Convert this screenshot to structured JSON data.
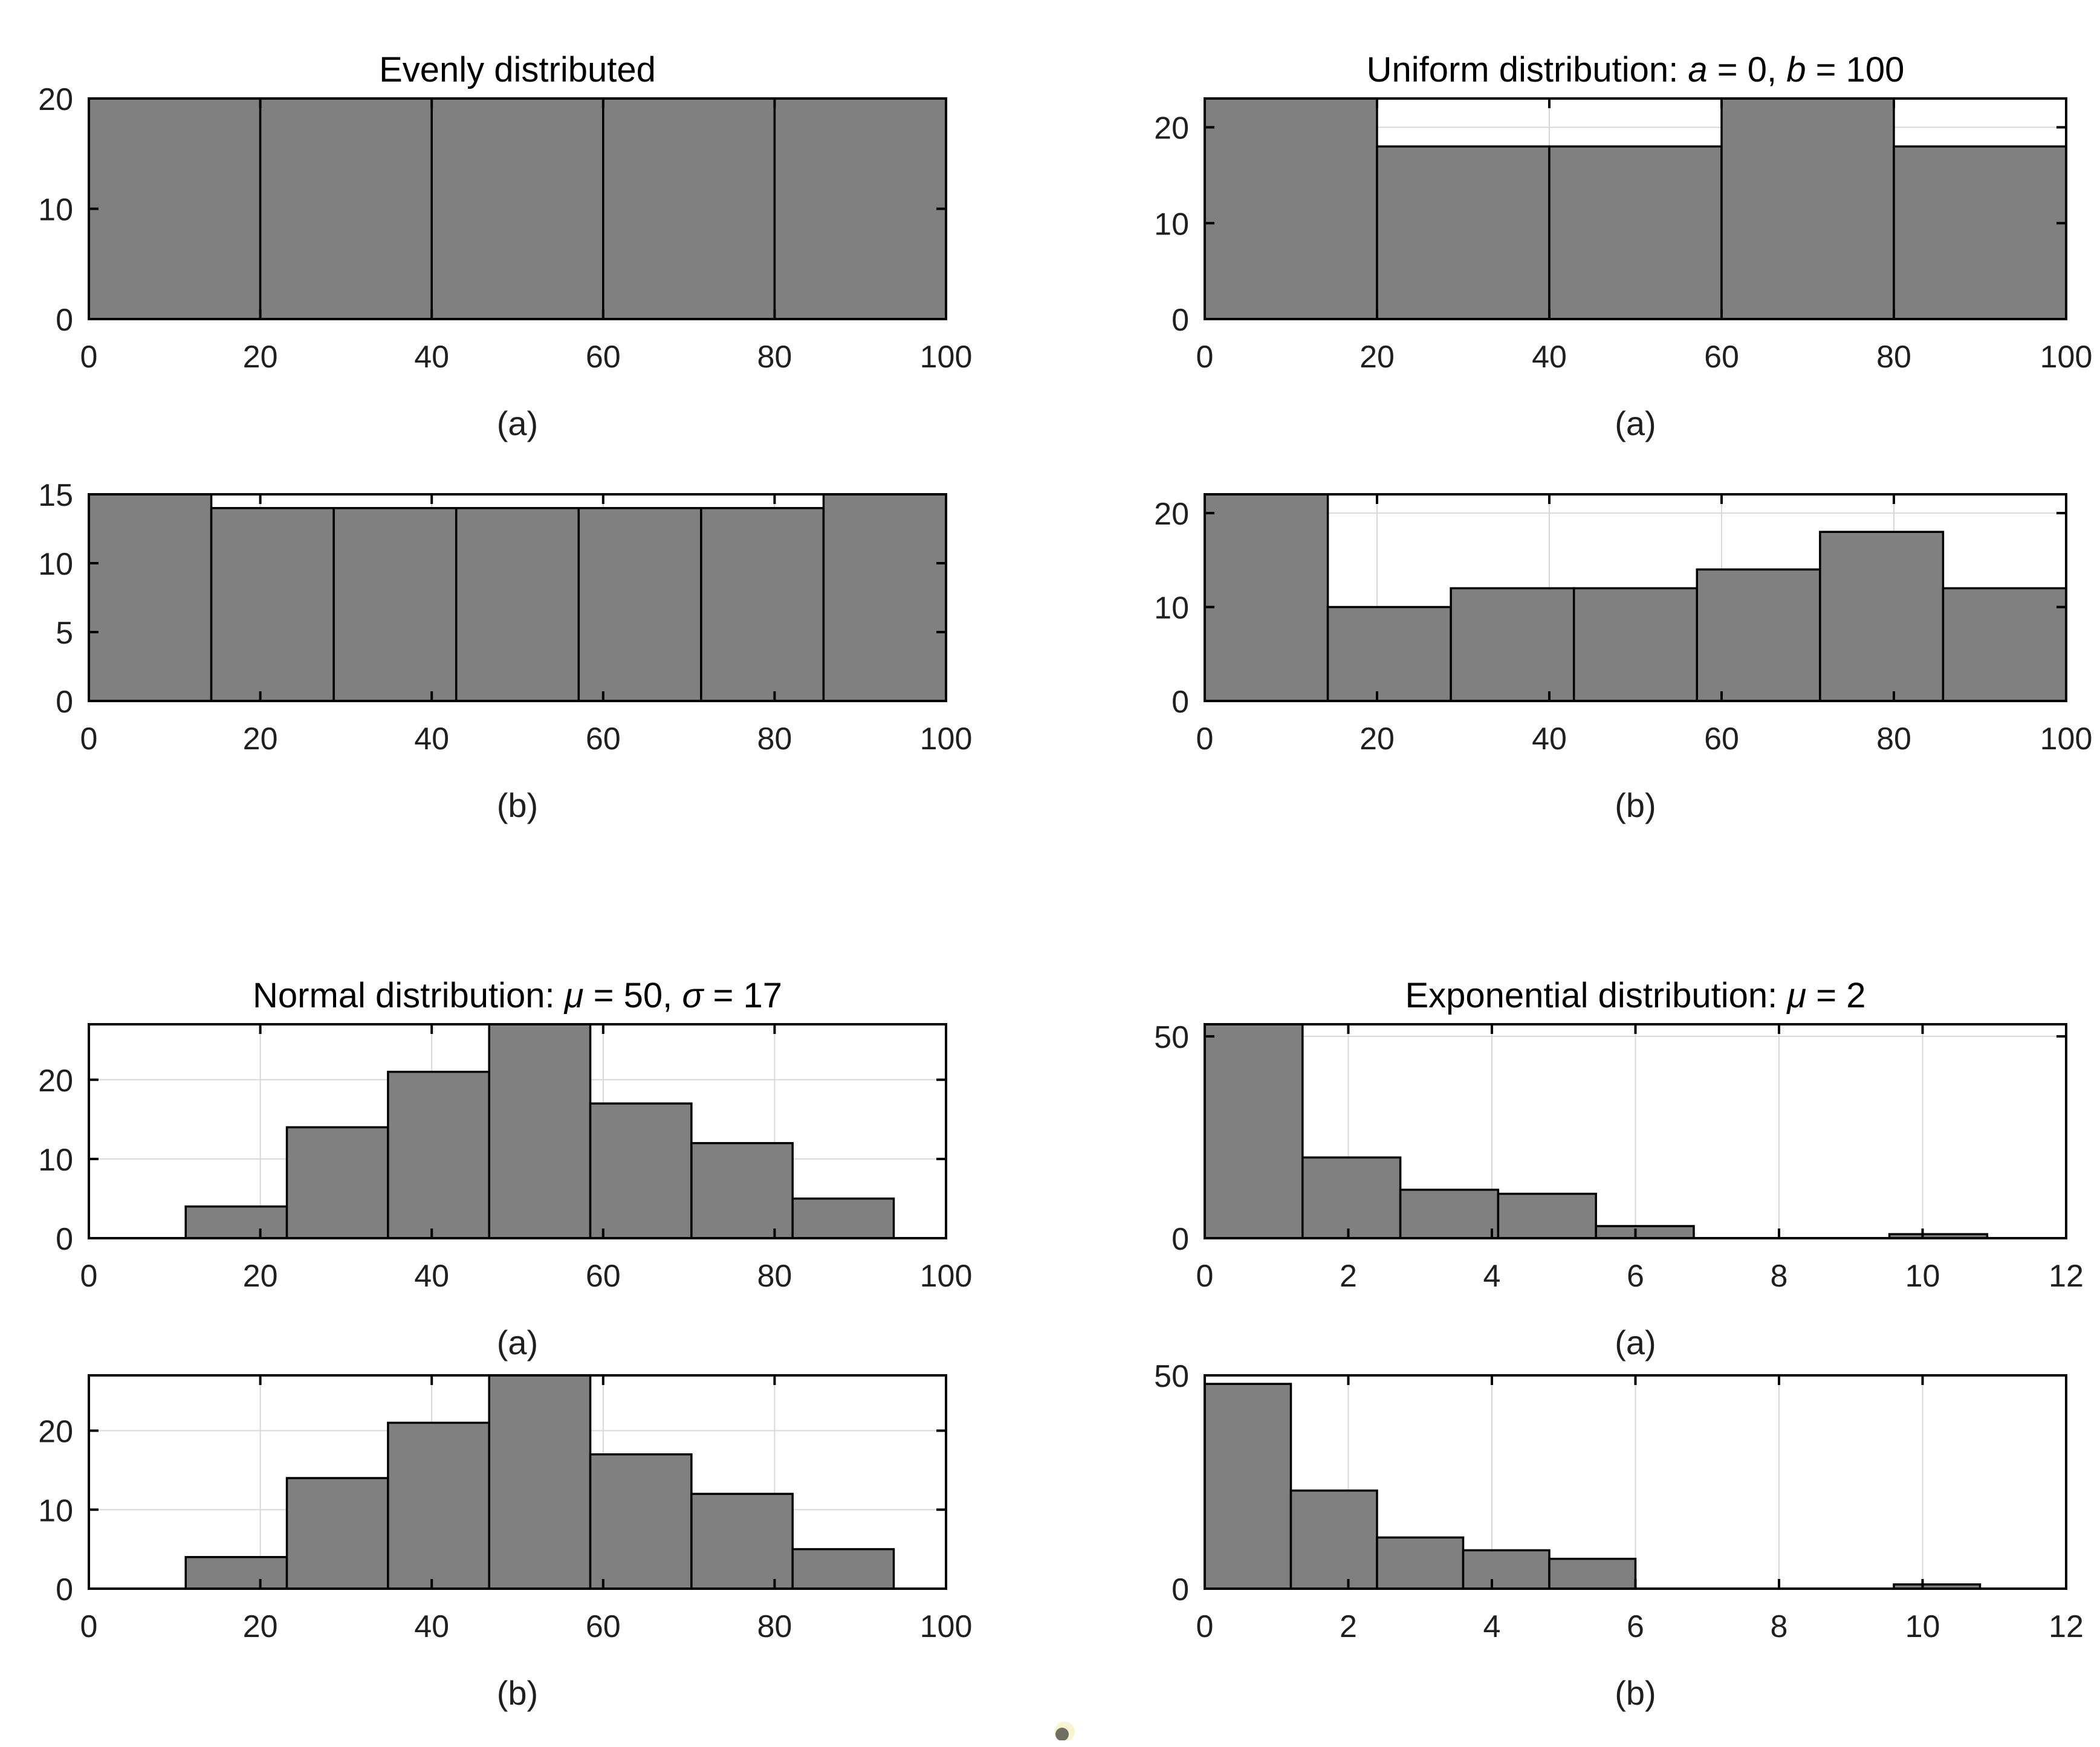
{
  "colors": {
    "background": "#ffffff",
    "bar_fill": "#808080",
    "bar_edge": "#000000",
    "axis": "#000000",
    "grid": "#d8d8d8",
    "tick_label": "#1f1f1f",
    "title": "#000000",
    "artifact_core": "#6e6e64",
    "artifact_halo": "#f8f4d0"
  },
  "chart_data": [
    {
      "id": "evenly-a",
      "type": "bar",
      "title": "Evenly distributed",
      "title_parts": [
        [
          "Evenly distributed",
          0
        ]
      ],
      "xlabel": "(a)",
      "ylabel": "",
      "grid": true,
      "legend": "none",
      "xlim": [
        0,
        100
      ],
      "ylim": [
        0,
        20
      ],
      "xticks": [
        0,
        20,
        40,
        60,
        80,
        100
      ],
      "yticks": [
        0,
        10,
        20
      ],
      "bin_start": 0,
      "bin_width": 20,
      "counts": [
        20,
        20,
        20,
        20,
        20
      ]
    },
    {
      "id": "uniform-a",
      "type": "bar",
      "title": "Uniform distribution: a = 0, b = 100",
      "title_parts": [
        [
          "Uniform distribution: ",
          0
        ],
        [
          "a",
          1
        ],
        [
          " = 0, ",
          0
        ],
        [
          "b",
          1
        ],
        [
          " = 100",
          0
        ]
      ],
      "xlabel": "(a)",
      "ylabel": "",
      "grid": true,
      "legend": "none",
      "xlim": [
        0,
        100
      ],
      "ylim": [
        0,
        23
      ],
      "xticks": [
        0,
        20,
        40,
        60,
        80,
        100
      ],
      "yticks": [
        0,
        10,
        20
      ],
      "bin_start": 0,
      "bin_width": 20,
      "counts": [
        23,
        18,
        18,
        23,
        18
      ]
    },
    {
      "id": "evenly-b",
      "type": "bar",
      "title": "",
      "title_parts": [],
      "xlabel": "(b)",
      "ylabel": "",
      "grid": true,
      "legend": "none",
      "xlim": [
        0,
        100
      ],
      "ylim": [
        0,
        15
      ],
      "xticks": [
        0,
        20,
        40,
        60,
        80,
        100
      ],
      "yticks": [
        0,
        5,
        10,
        15
      ],
      "bin_start": 0,
      "bin_width": 14.2857,
      "counts": [
        15,
        14,
        14,
        14,
        14,
        14,
        15
      ]
    },
    {
      "id": "uniform-b",
      "type": "bar",
      "title": "",
      "title_parts": [],
      "xlabel": "(b)",
      "ylabel": "",
      "grid": true,
      "legend": "none",
      "xlim": [
        0,
        100
      ],
      "ylim": [
        0,
        22
      ],
      "xticks": [
        0,
        20,
        40,
        60,
        80,
        100
      ],
      "yticks": [
        0,
        10,
        20
      ],
      "bin_start": 0,
      "bin_width": 14.2857,
      "counts": [
        22,
        10,
        12,
        12,
        14,
        18,
        12
      ]
    },
    {
      "id": "normal-a",
      "type": "bar",
      "title": "Normal distribution: μ = 50, σ = 17",
      "title_parts": [
        [
          "Normal distribution: ",
          0
        ],
        [
          "μ",
          1
        ],
        [
          " = 50, ",
          0
        ],
        [
          "σ",
          1
        ],
        [
          " = 17",
          0
        ]
      ],
      "xlabel": "(a)",
      "ylabel": "",
      "grid": true,
      "legend": "none",
      "xlim": [
        0,
        100
      ],
      "ylim": [
        0,
        27
      ],
      "xticks": [
        0,
        20,
        40,
        60,
        80,
        100
      ],
      "yticks": [
        0,
        10,
        20
      ],
      "bin_start": 11.3,
      "bin_width": 11.8,
      "counts": [
        4,
        14,
        21,
        27,
        17,
        12,
        5
      ]
    },
    {
      "id": "exponential-a",
      "type": "bar",
      "title": "Exponential distribution: μ = 2",
      "title_parts": [
        [
          "Exponential distribution: ",
          0
        ],
        [
          "μ",
          1
        ],
        [
          " = 2",
          0
        ]
      ],
      "xlabel": "(a)",
      "ylabel": "",
      "grid": true,
      "legend": "none",
      "xlim": [
        0,
        12
      ],
      "ylim": [
        0,
        53
      ],
      "xticks": [
        0,
        2,
        4,
        6,
        8,
        10,
        12
      ],
      "yticks": [
        0,
        50
      ],
      "bin_start": 0,
      "bin_width": 1.3625,
      "counts": [
        53,
        20,
        12,
        11,
        3,
        0,
        0,
        1
      ]
    },
    {
      "id": "normal-b",
      "type": "bar",
      "title": "",
      "title_parts": [],
      "xlabel": "(b)",
      "ylabel": "",
      "grid": true,
      "legend": "none",
      "xlim": [
        0,
        100
      ],
      "ylim": [
        0,
        27
      ],
      "xticks": [
        0,
        20,
        40,
        60,
        80,
        100
      ],
      "yticks": [
        0,
        10,
        20
      ],
      "bin_start": 11.3,
      "bin_width": 11.8,
      "counts": [
        4,
        14,
        21,
        27,
        17,
        12,
        5
      ]
    },
    {
      "id": "exponential-b",
      "type": "bar",
      "title": "",
      "title_parts": [],
      "xlabel": "(b)",
      "ylabel": "",
      "grid": true,
      "legend": "none",
      "xlim": [
        0,
        12
      ],
      "ylim": [
        0,
        50
      ],
      "xticks": [
        0,
        2,
        4,
        6,
        8,
        10,
        12
      ],
      "yticks": [
        0,
        50
      ],
      "bin_start": 0,
      "bin_width": 1.2,
      "counts": [
        48,
        23,
        12,
        9,
        7,
        0,
        0,
        0,
        1
      ]
    }
  ]
}
